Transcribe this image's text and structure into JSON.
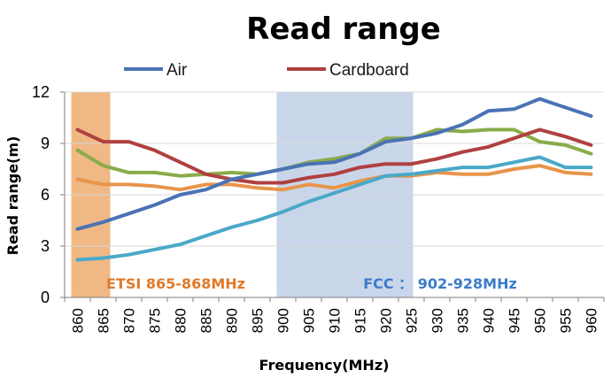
{
  "chart_data": {
    "type": "line",
    "title": "Read range",
    "xlabel": "Frequency(MHz)",
    "ylabel": "Read range(m)",
    "ylim": [
      0,
      12
    ],
    "yticks": [
      0,
      3,
      6,
      9,
      12
    ],
    "categories": [
      "860",
      "865",
      "870",
      "875",
      "880",
      "885",
      "890",
      "895",
      "900",
      "905",
      "910",
      "915",
      "920",
      "925",
      "930",
      "935",
      "940",
      "945",
      "950",
      "955",
      "960"
    ],
    "legend": [
      "Air",
      "Cardboard"
    ],
    "series": [
      {
        "name": "Air",
        "color": "#4a73b5",
        "values": [
          4.0,
          4.4,
          4.9,
          5.4,
          6.0,
          6.3,
          6.9,
          7.2,
          7.5,
          7.8,
          7.9,
          8.4,
          9.1,
          9.3,
          9.6,
          10.1,
          10.9,
          11.0,
          11.6,
          11.1,
          10.6
        ]
      },
      {
        "name": "Cardboard",
        "color": "#b04040",
        "values": [
          9.8,
          9.1,
          9.1,
          8.6,
          7.9,
          7.2,
          6.9,
          6.7,
          6.7,
          7.0,
          7.2,
          7.6,
          7.8,
          7.8,
          8.1,
          8.5,
          8.8,
          9.3,
          9.8,
          9.4,
          8.9
        ]
      },
      {
        "name": "",
        "color": "#8aab4a",
        "values": [
          8.6,
          7.7,
          7.3,
          7.3,
          7.1,
          7.2,
          7.3,
          7.2,
          7.5,
          7.9,
          8.1,
          8.4,
          9.3,
          9.3,
          9.8,
          9.7,
          9.8,
          9.8,
          9.1,
          8.9,
          8.4
        ]
      },
      {
        "name": "",
        "color": "#e8944a",
        "values": [
          6.9,
          6.6,
          6.6,
          6.5,
          6.3,
          6.6,
          6.6,
          6.4,
          6.3,
          6.6,
          6.4,
          6.8,
          7.1,
          7.1,
          7.3,
          7.2,
          7.2,
          7.5,
          7.7,
          7.3,
          7.2
        ]
      },
      {
        "name": "",
        "color": "#4aa8c8",
        "values": [
          2.2,
          2.3,
          2.5,
          2.8,
          3.1,
          3.6,
          4.1,
          4.5,
          5.0,
          5.6,
          6.1,
          6.6,
          7.1,
          7.2,
          7.4,
          7.6,
          7.6,
          7.9,
          8.2,
          7.6,
          7.6
        ]
      }
    ],
    "bands": [
      {
        "label": "ETSI 865-868MHz",
        "from": "860",
        "to": "865",
        "color": "#f0b885",
        "label_color": "#e07a2a"
      },
      {
        "label": "FCC ： 902-928MHz",
        "from": "900",
        "to": "925",
        "color": "#c9d6ea",
        "label_color": "#3a7cc9"
      }
    ]
  }
}
